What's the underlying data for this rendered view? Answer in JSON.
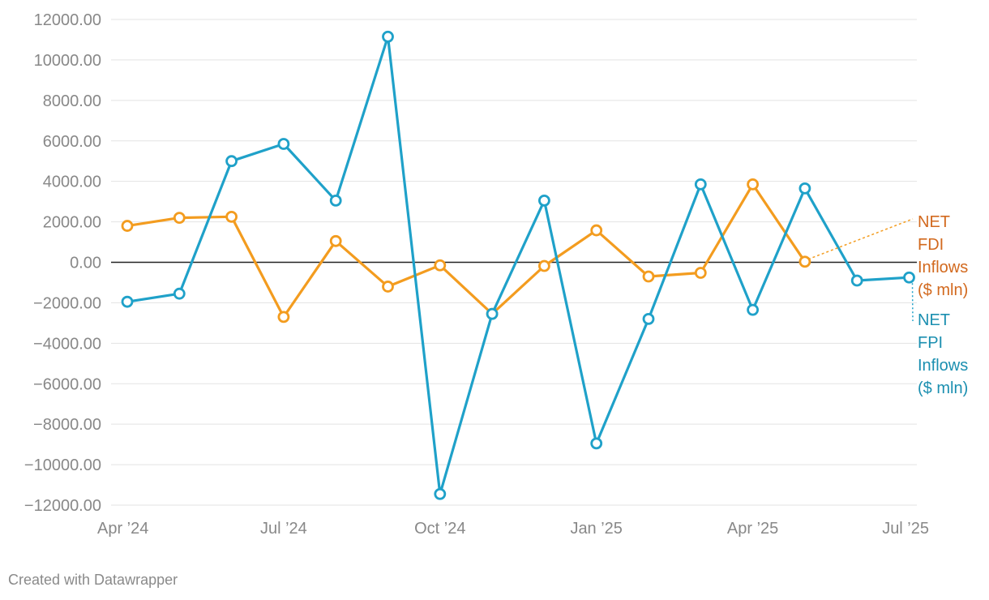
{
  "credit": "Created with Datawrapper",
  "chart_data": {
    "type": "line",
    "x": [
      "Apr 2024",
      "May 2024",
      "Jun 2024",
      "Jul 2024",
      "Aug 2024",
      "Sep 2024",
      "Oct 2024",
      "Nov 2024",
      "Dec 2024",
      "Jan 2025",
      "Feb 2025",
      "Mar 2025",
      "Apr 2025",
      "May 2025",
      "Jun 2025",
      "Jul 2025"
    ],
    "x_tick_labels": [
      "Apr ’24",
      "Jul ’24",
      "Oct ’24",
      "Jan ’25",
      "Apr ’25",
      "Jul ’25"
    ],
    "y_tick_labels": [
      "12000.00",
      "10000.00",
      "8000.00",
      "6000.00",
      "4000.00",
      "2000.00",
      "0.00",
      "−2000.00",
      "−4000.00",
      "−6000.00",
      "−8000.00",
      "−10000.00",
      "−12000.00"
    ],
    "ylim": [
      -12000,
      12000
    ],
    "grid": true,
    "series": [
      {
        "name": "NET FDI Inflows ($ mln)",
        "label_lines": [
          "NET",
          "FDI",
          "Inflows",
          "($ mln)"
        ],
        "color": "#f39c1f",
        "label_color": "#d2691e",
        "values": [
          1800,
          2200,
          2250,
          -2700,
          1050,
          -1200,
          -150,
          -2550,
          -180,
          1580,
          -700,
          -520,
          3850,
          30,
          null,
          null
        ]
      },
      {
        "name": "NET FPI Inflows ($ mln)",
        "label_lines": [
          "NET",
          "FPI",
          "Inflows",
          "($ mln)"
        ],
        "color": "#1fa1c9",
        "label_color": "#1b8fb0",
        "values": [
          -1950,
          -1550,
          5000,
          5850,
          3050,
          11150,
          -11450,
          -2550,
          3050,
          -8950,
          -2800,
          3850,
          -2350,
          3650,
          -900,
          -750
        ]
      }
    ]
  }
}
